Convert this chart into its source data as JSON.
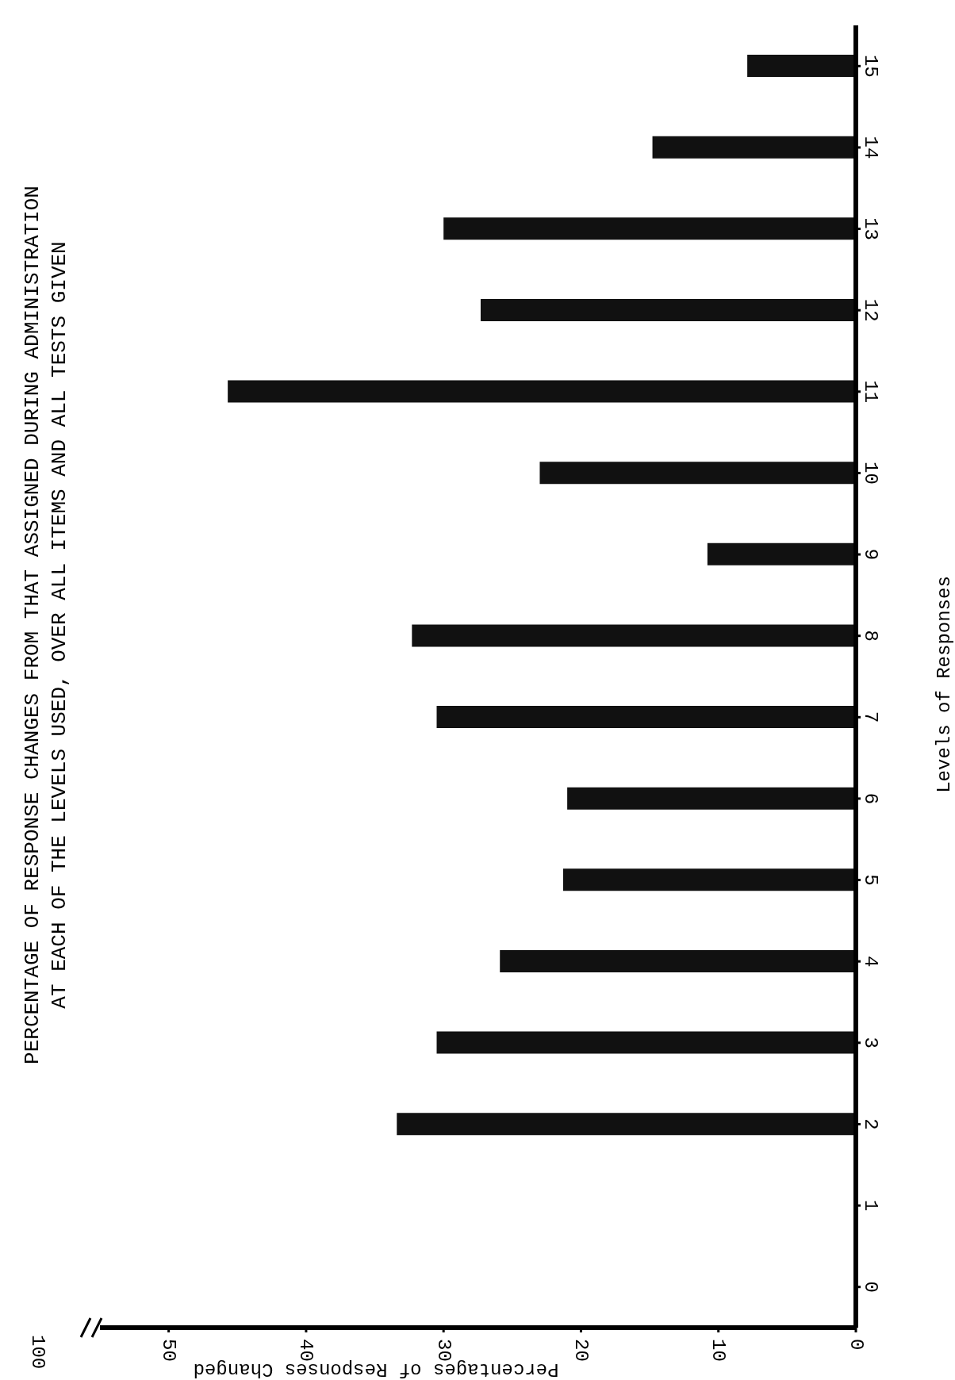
{
  "chart_data": {
    "type": "bar",
    "orientation": "horizontal",
    "title": "PERCENTAGE OF RESPONSE CHANGES FROM THAT ASSIGNED DURING ADMINISTRATION\nAT EACH OF THE LEVELS USED, OVER ALL ITEMS AND ALL TESTS GIVEN",
    "xlabel": "Percentages of Responses Changed",
    "ylabel": "Levels of Responses",
    "categories": [
      "15",
      "14",
      "13",
      "12",
      "11",
      "10",
      "9",
      "8",
      "7",
      "6",
      "5",
      "4",
      "3",
      "2",
      "1",
      "0"
    ],
    "values": [
      7.9,
      14.8,
      30.0,
      27.3,
      45.7,
      23.0,
      10.8,
      32.3,
      30.5,
      21.0,
      21.3,
      25.9,
      30.5,
      33.4,
      0,
      0
    ],
    "color": "#111111",
    "xlim": [
      55,
      0
    ],
    "xticks": [
      0,
      10,
      20,
      30,
      40,
      50
    ],
    "annotations": [
      "100"
    ]
  }
}
